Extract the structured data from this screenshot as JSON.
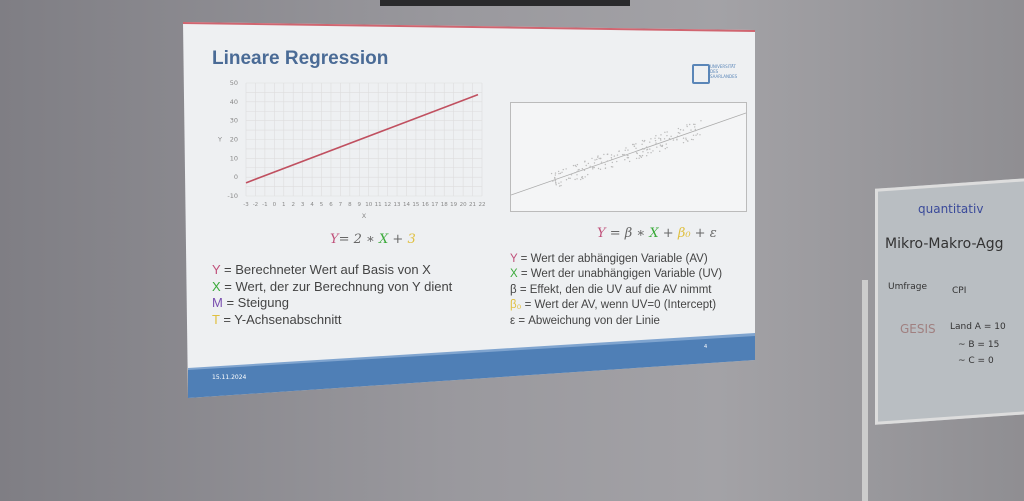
{
  "slide": {
    "title": "Lineare Regression",
    "logo_text": "UNIVERSITÄT DES SAARLANDES",
    "date": "15.11.2024",
    "page": "4",
    "left_equation": {
      "Y": "Y",
      "rest": "= 2 ∗ ",
      "X": "X",
      "plus": " + ",
      "T": "3"
    },
    "right_equation": {
      "Y": "Y",
      "eq": " = β ∗ ",
      "X": "X",
      "plus": " + ",
      "b0": "β₀",
      "eps": " + ε"
    },
    "left_legend": [
      {
        "sym": "Y",
        "text": " = Berechneter Wert auf Basis von X",
        "color": "#c0507a"
      },
      {
        "sym": "X",
        "text": " = Wert, der zur Berechnung von Y dient",
        "color": "#3aaa3a"
      },
      {
        "sym": "M",
        "text": " = Steigung",
        "color": "#7a4fb0"
      },
      {
        "sym": "T",
        "text": " = Y-Achsenabschnitt",
        "color": "#e0c040"
      }
    ],
    "right_legend": [
      {
        "sym": "Y",
        "text": " = Wert der abhängigen Variable (AV)",
        "color": "#c0507a"
      },
      {
        "sym": "X",
        "text": " = Wert der unabhängigen Variable (UV)",
        "color": "#3aaa3a"
      },
      {
        "sym": "β",
        "text": " = Effekt, den die UV auf die AV nimmt",
        "color": "#444"
      },
      {
        "sym": "β₀",
        "text": " = Wert der AV, wenn UV=0 (Intercept)",
        "color": "#e0c040"
      },
      {
        "sym": "ε",
        "text": " = Abweichung von der Linie",
        "color": "#444"
      }
    ]
  },
  "chart_data": [
    {
      "type": "line",
      "xlabel": "X",
      "ylabel": "Y",
      "xlim": [
        -3,
        22
      ],
      "ylim": [
        -10,
        50
      ],
      "x_ticks": [
        -3,
        -2,
        -1,
        0,
        1,
        2,
        3,
        4,
        5,
        6,
        7,
        8,
        9,
        10,
        11,
        12,
        13,
        14,
        15,
        16,
        17,
        18,
        19,
        20,
        21,
        22
      ],
      "y_ticks": [
        -10,
        0,
        10,
        20,
        30,
        40,
        50
      ],
      "grid": true,
      "series": [
        {
          "color": "#c05060",
          "x": [
            -3,
            22
          ],
          "y": [
            -3,
            47
          ]
        }
      ]
    },
    {
      "type": "scatter",
      "grid": false,
      "note_color": "#999"
    }
  ],
  "whiteboard": {
    "lines": [
      "quantitativ",
      "Mikro-Makro-Agg",
      "Umfrage",
      "CPI",
      "GESIS",
      "Land A = 10",
      "~ B = 15",
      "~ C = 0"
    ]
  }
}
